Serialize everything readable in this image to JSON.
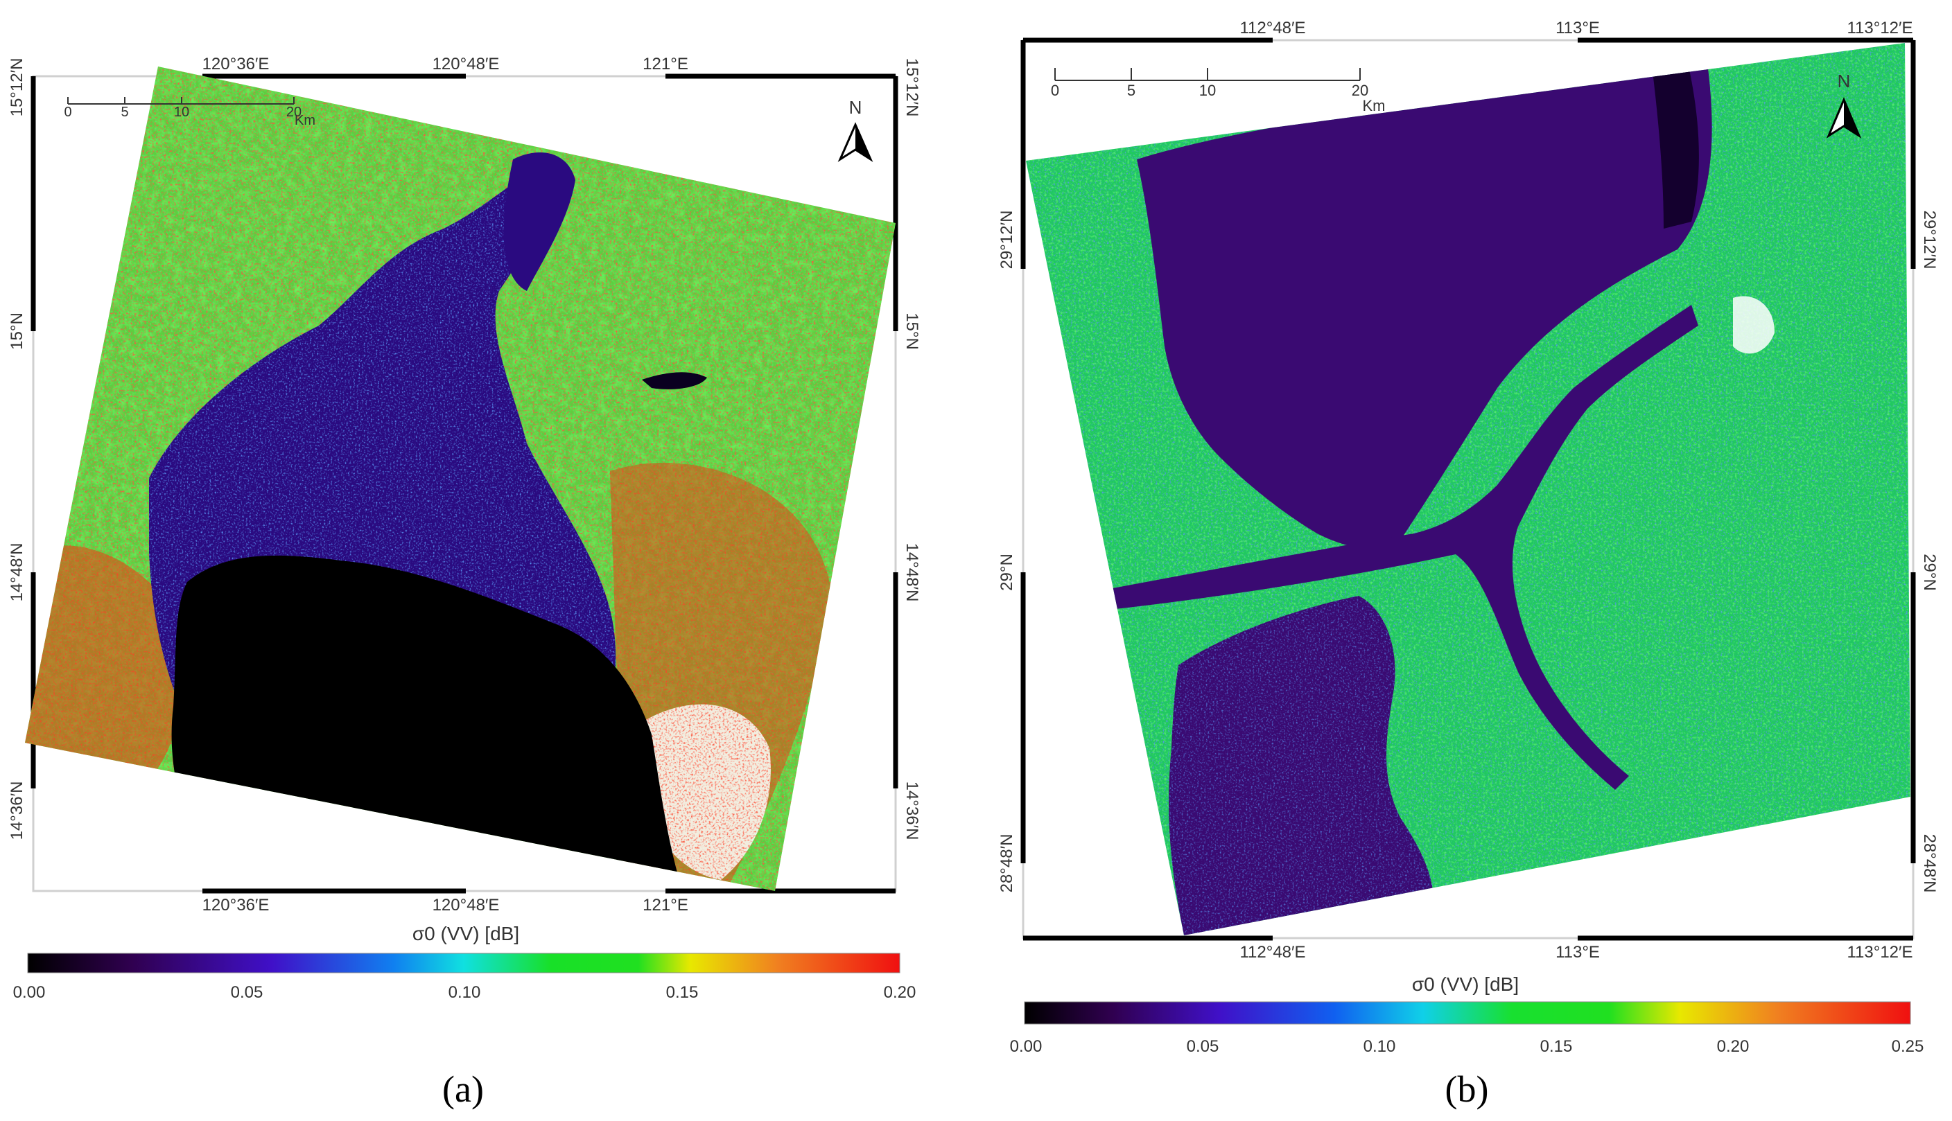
{
  "panels": [
    {
      "id": "a",
      "caption": "(a)",
      "top_labels": [
        "120°36′E",
        "120°48′E",
        "121°E"
      ],
      "bottom_labels": [
        "120°36′E",
        "120°48′E",
        "121°E"
      ],
      "corner_label_left": "15°12′N",
      "corner_label_right": "15°12′N",
      "left_labels": [
        "15°N",
        "14°48′N",
        "14°36′N"
      ],
      "right_labels": [
        "15°N",
        "14°48′N",
        "14°36′N"
      ],
      "scalebar": {
        "ticks": [
          "0",
          "5",
          "10",
          "20"
        ],
        "unit": "Km"
      },
      "north": "N",
      "colorbar": {
        "title": "σ0 (VV) [dB]",
        "ticks": [
          "0.00",
          "0.05",
          "0.10",
          "0.15",
          "0.20"
        ],
        "range": [
          0.0,
          0.2
        ]
      }
    },
    {
      "id": "b",
      "caption": "(b)",
      "top_labels": [
        "112°48′E",
        "113°E",
        "113°12′E"
      ],
      "bottom_labels": [
        "112°48′E",
        "113°E",
        "113°12′E"
      ],
      "left_labels": [
        "29°12′N",
        "29°N",
        "28°48′N"
      ],
      "right_labels": [
        "29°12′N",
        "29°N",
        "28°48′N"
      ],
      "scalebar": {
        "ticks": [
          "0",
          "5",
          "10",
          "20"
        ],
        "unit": "Km"
      },
      "north": "N",
      "colorbar": {
        "title": "σ0 (VV) [dB]",
        "ticks": [
          "0.00",
          "0.05",
          "0.10",
          "0.15",
          "0.20",
          "0.25"
        ],
        "range": [
          0.0,
          0.25
        ]
      }
    }
  ],
  "colors": {
    "black": "#000000",
    "purple": "#3a007a",
    "blue": "#1030e0",
    "cyan": "#10d8e8",
    "green": "#18e020",
    "yellow": "#e8e800",
    "orange": "#f08020",
    "red": "#f01010",
    "white": "#ffffff"
  }
}
